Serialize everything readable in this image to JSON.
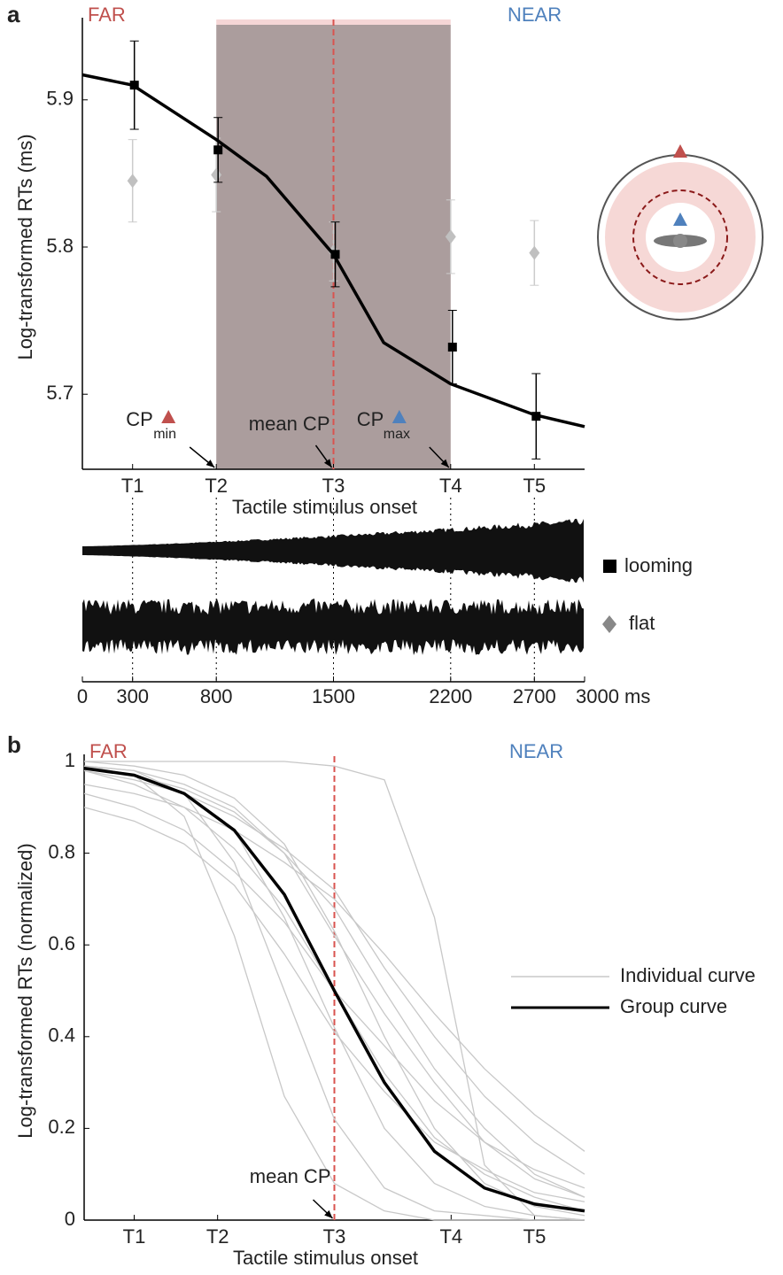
{
  "chart_data": [
    {
      "type": "scatter",
      "panel": "a",
      "far_label": "FAR",
      "far_color": "#c0504d",
      "near_label": "NEAR",
      "near_color": "#4f81bd",
      "ylabel": "Log-transformed RTs (ms)",
      "xlabel": "Tactile stimulus onset",
      "xlim": [
        0,
        3000
      ],
      "xticks": [
        {
          "value": 300,
          "label": "T1"
        },
        {
          "value": 800,
          "label": "T2"
        },
        {
          "value": 1500,
          "label": "T3"
        },
        {
          "value": 2200,
          "label": "T4"
        },
        {
          "value": 2700,
          "label": "T5"
        }
      ],
      "ylim": [
        5.649,
        5.951
      ],
      "yticks": [
        5.7,
        5.8,
        5.9
      ],
      "x": [
        300,
        800,
        1500,
        2200,
        2700
      ],
      "series": [
        {
          "name": "looming",
          "color": "#000000",
          "marker": "square",
          "values": [
            5.91,
            5.866,
            5.795,
            5.732,
            5.685
          ],
          "errors": [
            0.03,
            0.022,
            0.022,
            0.025,
            0.029
          ]
        },
        {
          "name": "flat",
          "color": "#c0c0c0",
          "marker": "diamond",
          "values": [
            5.845,
            5.849,
            5.797,
            5.807,
            5.796
          ],
          "errors": [
            0.028,
            0.025,
            0.02,
            0.025,
            0.022
          ]
        }
      ],
      "fit": {
        "color": "#000000",
        "x": [
          0,
          300,
          800,
          1100,
          1500,
          1800,
          2200,
          2700,
          3000
        ],
        "values": [
          5.917,
          5.91,
          5.873,
          5.848,
          5.795,
          5.735,
          5.707,
          5.686,
          5.678
        ]
      },
      "cp_range": [
        800,
        2200
      ],
      "cp_range_color": "#ab9d9d",
      "mean_cp": 1500,
      "mean_cp_label": "mean CP",
      "cp_label": "CP",
      "cp_min_label": "min",
      "cp_max_label": "max"
    },
    {
      "type": "waveform",
      "xlim": [
        0,
        3000
      ],
      "xticks": [
        0,
        300,
        800,
        1500,
        2200,
        2700,
        {
          "value": 3000,
          "label": "3000 ms"
        }
      ]
    },
    {
      "type": "line",
      "panel": "b",
      "far_label": "FAR",
      "far_color": "#c0504d",
      "near_label": "NEAR",
      "near_color": "#4f81bd",
      "ylabel": "Log-transformed RTs (normalized)",
      "xlabel": "Tactile stimulus onset",
      "xlim": [
        0,
        3000
      ],
      "xticks": [
        {
          "value": 300,
          "label": "T1"
        },
        {
          "value": 800,
          "label": "T2"
        },
        {
          "value": 1500,
          "label": "T3"
        },
        {
          "value": 2200,
          "label": "T4"
        },
        {
          "value": 2700,
          "label": "T5"
        }
      ],
      "ylim": [
        0,
        1
      ],
      "yticks": [
        0,
        0.2,
        0.4,
        0.6,
        0.8,
        1
      ],
      "x": [
        0,
        300,
        600,
        900,
        1200,
        1500,
        1800,
        2100,
        2400,
        2700,
        3000
      ],
      "series": [
        {
          "name": "Individual curve",
          "color": "#c8c8c8",
          "curves": [
            [
              0.99,
              0.97,
              0.88,
              0.62,
              0.27,
              0.08,
              0.02,
              0,
              0,
              0,
              0
            ],
            [
              0.99,
              0.98,
              0.93,
              0.78,
              0.5,
              0.22,
              0.07,
              0.02,
              0.01,
              0,
              0
            ],
            [
              0.99,
              0.97,
              0.93,
              0.85,
              0.66,
              0.42,
              0.2,
              0.08,
              0.03,
              0.01,
              0
            ],
            [
              0.98,
              0.95,
              0.9,
              0.81,
              0.68,
              0.5,
              0.32,
              0.18,
              0.1,
              0.05,
              0.02
            ],
            [
              0.99,
              0.97,
              0.94,
              0.89,
              0.8,
              0.62,
              0.45,
              0.3,
              0.17,
              0.09,
              0.05
            ],
            [
              0.98,
              0.96,
              0.93,
              0.88,
              0.81,
              0.72,
              0.55,
              0.4,
              0.27,
              0.17,
              0.1
            ],
            [
              0.95,
              0.93,
              0.9,
              0.85,
              0.78,
              0.7,
              0.58,
              0.45,
              0.33,
              0.23,
              0.15
            ],
            [
              1,
              1,
              1,
              1,
              1,
              0.99,
              0.96,
              0.66,
              0.12,
              0.01,
              0
            ],
            [
              0.99,
              0.98,
              0.95,
              0.9,
              0.8,
              0.68,
              0.5,
              0.33,
              0.2,
              0.1,
              0.05
            ],
            [
              0.93,
              0.9,
              0.85,
              0.76,
              0.65,
              0.5,
              0.38,
              0.26,
              0.17,
              0.11,
              0.07
            ],
            [
              1,
              0.99,
              0.97,
              0.92,
              0.82,
              0.63,
              0.4,
              0.2,
              0.08,
              0.03,
              0.01
            ],
            [
              0.9,
              0.87,
              0.82,
              0.73,
              0.58,
              0.41,
              0.28,
              0.17,
              0.11,
              0.06,
              0.04
            ]
          ]
        },
        {
          "name": "Group curve",
          "color": "#000000",
          "values": [
            0.985,
            0.97,
            0.93,
            0.85,
            0.71,
            0.5,
            0.3,
            0.15,
            0.07,
            0.035,
            0.02
          ]
        }
      ],
      "mean_cp": 1500,
      "mean_cp_label": "mean CP"
    }
  ]
}
